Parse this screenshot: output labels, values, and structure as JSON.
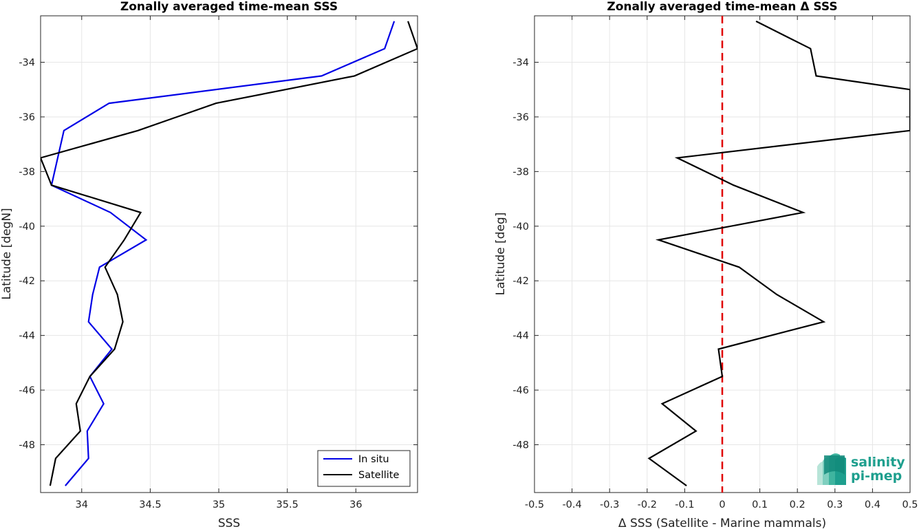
{
  "chart_data": [
    {
      "type": "line",
      "title": "Zonally averaged time-mean SSS",
      "xlabel": "SSS",
      "ylabel": "Latitude [degN]",
      "xlim": [
        33.7,
        36.45
      ],
      "ylim": [
        -49.75,
        -32.3
      ],
      "xticks": [
        34,
        34.5,
        35,
        35.5,
        36
      ],
      "xtick_labels": [
        "34",
        "34.5",
        "35",
        "35.5",
        "36"
      ],
      "yticks": [
        -48,
        -46,
        -44,
        -42,
        -40,
        -38,
        -36,
        -34
      ],
      "ytick_labels": [
        "-48",
        "-46",
        "-44",
        "-42",
        "-40",
        "-38",
        "-36",
        "-34"
      ],
      "grid": true,
      "legend_position": "bottom-right",
      "series": [
        {
          "name": "In situ",
          "color": "#0000e6",
          "x": [
            36.28,
            36.21,
            35.75,
            34.2,
            33.87,
            33.78,
            34.21,
            34.47,
            34.13,
            34.08,
            34.05,
            34.22,
            34.06,
            34.16,
            34.04,
            34.05,
            33.88
          ],
          "y": [
            -32.5,
            -33.5,
            -34.5,
            -35.5,
            -36.5,
            -38.5,
            -39.5,
            -40.5,
            -41.5,
            -42.5,
            -43.5,
            -44.5,
            -45.5,
            -46.5,
            -47.5,
            -48.5,
            -49.5
          ]
        },
        {
          "name": "Satellite",
          "color": "#000000",
          "x": [
            36.38,
            36.45,
            35.99,
            34.98,
            34.41,
            33.7,
            33.78,
            34.43,
            34.31,
            34.17,
            34.26,
            34.3,
            34.24,
            34.06,
            33.96,
            33.99,
            33.81,
            33.77
          ],
          "y": [
            -32.5,
            -33.5,
            -34.5,
            -35.5,
            -36.5,
            -37.5,
            -38.5,
            -39.5,
            -40.5,
            -41.5,
            -42.5,
            -43.5,
            -44.5,
            -45.5,
            -46.5,
            -47.5,
            -48.5,
            -49.5
          ]
        }
      ]
    },
    {
      "type": "line",
      "title": "Zonally averaged time-mean Δ SSS",
      "xlabel": "Δ SSS (Satellite - Marine mammals)",
      "ylabel": "Latitude [deg]",
      "xlim": [
        -0.5,
        0.5
      ],
      "ylim": [
        -49.75,
        -32.3
      ],
      "xticks": [
        -0.5,
        -0.4,
        -0.3,
        -0.2,
        -0.1,
        0,
        0.1,
        0.2,
        0.3,
        0.4,
        0.5
      ],
      "xtick_labels": [
        "-0.5",
        "-0.4",
        "-0.3",
        "-0.2",
        "-0.1",
        "0",
        "0.1",
        "0.2",
        "0.3",
        "0.4",
        "0.5"
      ],
      "yticks": [
        -48,
        -46,
        -44,
        -42,
        -40,
        -38,
        -36,
        -34
      ],
      "ytick_labels": [
        "-48",
        "-46",
        "-44",
        "-42",
        "-40",
        "-38",
        "-36",
        "-34"
      ],
      "grid": true,
      "reference_line": {
        "x": 0,
        "color": "#e00000",
        "style": "dashed"
      },
      "series": [
        {
          "color": "#000000",
          "x": [
            0.09,
            0.235,
            0.25,
            0.5,
            0.5,
            -0.12,
            0.03,
            0.215,
            -0.17,
            0.045,
            0.145,
            0.27,
            -0.01,
            0.0,
            -0.16,
            -0.07,
            -0.195,
            -0.095
          ],
          "y": [
            -32.5,
            -33.5,
            -34.5,
            -35.0,
            -36.5,
            -37.5,
            -38.5,
            -39.5,
            -40.5,
            -41.5,
            -42.5,
            -43.5,
            -44.5,
            -45.5,
            -46.5,
            -47.5,
            -48.5,
            -49.5
          ]
        }
      ]
    }
  ],
  "logo": {
    "line1": "salinity",
    "line2": "pi-mep"
  }
}
